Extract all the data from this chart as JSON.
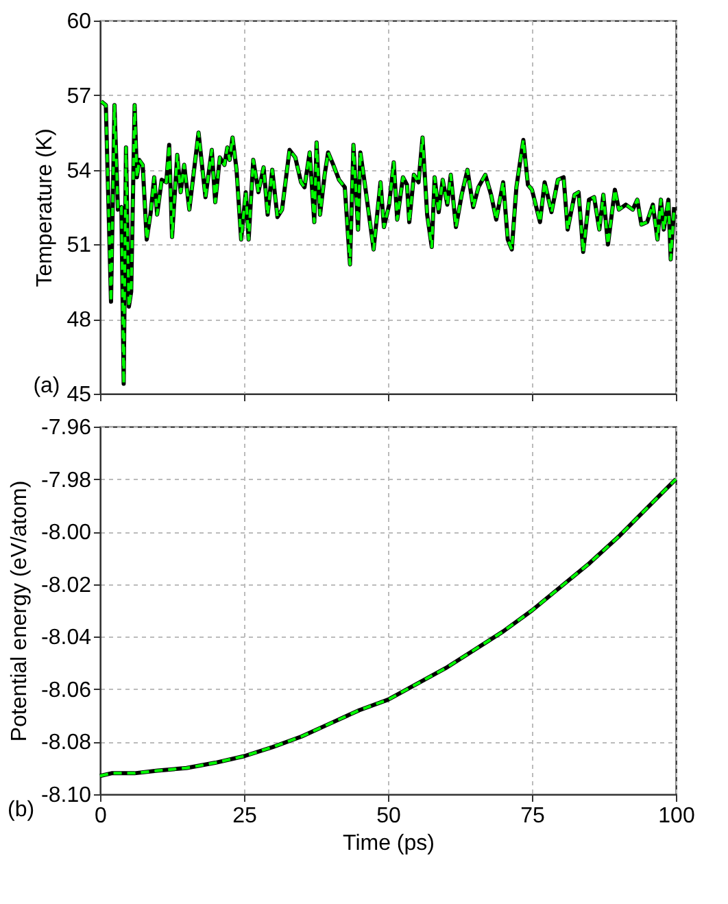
{
  "chart_data": [
    {
      "type": "line",
      "ylabel": "Temperature (K)",
      "annotations": [
        "(a)"
      ],
      "xlim": [
        0,
        100
      ],
      "xticks": [
        0,
        25,
        50,
        75,
        100
      ],
      "ylim": [
        45,
        60
      ],
      "yticks": [
        45,
        48,
        51,
        54,
        57,
        60
      ],
      "tick_labels": "y",
      "grid": true,
      "x": [
        0.2,
        1.0,
        1.9,
        2.5,
        3.1,
        3.7,
        4.1,
        4.5,
        5.0,
        5.4,
        6.0,
        6.4,
        6.8,
        7.4,
        8.1,
        8.8,
        9.4,
        9.9,
        10.7,
        11.5,
        12.0,
        12.5,
        13.4,
        14.0,
        14.6,
        15.5,
        17.1,
        18.3,
        19.4,
        20.0,
        20.8,
        21.6,
        22.1,
        22.5,
        23.0,
        23.7,
        24.5,
        25.3,
        25.8,
        26.6,
        27.5,
        28.4,
        29.1,
        29.9,
        30.8,
        31.6,
        32.9,
        33.9,
        34.9,
        35.5,
        36.4,
        37.2,
        37.6,
        38.2,
        39.0,
        39.6,
        40.5,
        41.5,
        42.5,
        43.4,
        44.0,
        44.8,
        45.2,
        46.0,
        47.5,
        48.7,
        49.3,
        50.2,
        51.0,
        51.6,
        52.6,
        53.3,
        53.7,
        54.5,
        55.3,
        56.0,
        56.8,
        57.6,
        58.1,
        58.8,
        59.5,
        60.3,
        60.9,
        61.8,
        62.8,
        63.8,
        64.8,
        65.7,
        66.9,
        67.9,
        68.8,
        70.0,
        70.8,
        71.5,
        72.3,
        73.5,
        74.3,
        75.0,
        76.4,
        77.2,
        78.4,
        79.5,
        80.5,
        81.2,
        82.4,
        83.1,
        83.9,
        84.9,
        85.8,
        86.7,
        87.4,
        88.2,
        89.4,
        90.1,
        91.3,
        92.5,
        93.3,
        94.0,
        95.0,
        96.0,
        96.8,
        97.4,
        97.9,
        98.7,
        99.1,
        99.7
      ],
      "series": [
        {
          "color": "#000000",
          "line_style": "solid",
          "values": [
            56.75,
            56.6,
            48.7,
            56.6,
            52.4,
            52.5,
            45.4,
            54.9,
            48.5,
            49.1,
            56.6,
            53.7,
            54.4,
            54.2,
            51.2,
            52.3,
            53.7,
            52.2,
            53.6,
            53.5,
            55.0,
            51.3,
            54.6,
            53.1,
            54.2,
            52.4,
            55.5,
            52.9,
            54.8,
            52.7,
            54.5,
            54.2,
            54.9,
            54.4,
            55.3,
            54.0,
            51.2,
            53.1,
            51.2,
            54.4,
            53.1,
            54.1,
            52.2,
            54.0,
            52.1,
            52.4,
            54.8,
            54.5,
            53.5,
            53.3,
            54.7,
            51.9,
            55.1,
            52.2,
            53.8,
            54.7,
            54.2,
            53.6,
            53.3,
            50.2,
            55.0,
            51.6,
            54.7,
            53.4,
            50.8,
            53.5,
            51.7,
            52.6,
            54.3,
            52.0,
            53.7,
            53.4,
            51.9,
            53.8,
            53.5,
            55.3,
            52.2,
            50.9,
            53.7,
            52.3,
            53.6,
            52.6,
            53.8,
            51.7,
            53.0,
            54.0,
            52.5,
            53.3,
            53.8,
            53.0,
            52.0,
            53.5,
            51.2,
            50.8,
            53.3,
            55.2,
            53.4,
            53.2,
            51.9,
            53.5,
            52.3,
            53.6,
            53.7,
            51.6,
            53.0,
            53.1,
            50.7,
            52.8,
            52.9,
            51.6,
            53.0,
            51.0,
            53.2,
            52.4,
            52.6,
            52.4,
            52.8,
            51.8,
            51.9,
            52.6,
            51.2,
            52.8,
            51.6,
            52.8,
            50.4,
            52.5
          ]
        },
        {
          "color": "#00ff00",
          "line_style": "dashed",
          "values": [
            56.75,
            56.6,
            48.7,
            56.6,
            52.4,
            52.5,
            45.4,
            54.9,
            48.5,
            49.1,
            56.6,
            53.7,
            54.4,
            54.2,
            51.2,
            52.3,
            53.7,
            52.2,
            53.6,
            53.5,
            55.0,
            51.3,
            54.6,
            53.1,
            54.2,
            52.4,
            55.5,
            52.9,
            54.8,
            52.7,
            54.5,
            54.2,
            54.9,
            54.4,
            55.3,
            54.0,
            51.2,
            53.1,
            51.2,
            54.4,
            53.1,
            54.1,
            52.2,
            54.0,
            52.1,
            52.4,
            54.8,
            54.5,
            53.5,
            53.3,
            54.7,
            51.9,
            55.1,
            52.2,
            53.8,
            54.7,
            54.2,
            53.6,
            53.3,
            50.2,
            55.0,
            51.6,
            54.7,
            53.4,
            50.8,
            53.5,
            51.7,
            52.6,
            54.3,
            52.0,
            53.7,
            53.4,
            51.9,
            53.8,
            53.5,
            55.3,
            52.2,
            50.9,
            53.7,
            52.3,
            53.6,
            52.6,
            53.8,
            51.7,
            53.0,
            54.0,
            52.5,
            53.3,
            53.8,
            53.0,
            52.0,
            53.5,
            51.2,
            50.8,
            53.3,
            55.2,
            53.4,
            53.2,
            51.9,
            53.5,
            52.3,
            53.6,
            53.7,
            51.6,
            53.0,
            53.1,
            50.7,
            52.8,
            52.9,
            51.6,
            53.0,
            51.0,
            53.2,
            52.4,
            52.6,
            52.4,
            52.8,
            51.8,
            51.9,
            52.6,
            51.2,
            52.8,
            51.6,
            52.8,
            50.4,
            52.5
          ]
        }
      ]
    },
    {
      "type": "line",
      "xlabel": "Time (ps)",
      "ylabel": "Potential energy (eV/atom)",
      "annotations": [
        "(b)"
      ],
      "xlim": [
        0,
        100
      ],
      "xticks": [
        0,
        25,
        50,
        75,
        100
      ],
      "ylim": [
        -8.1,
        -7.96
      ],
      "yticks": [
        {
          "value": -8.1,
          "label": "-8.10"
        },
        {
          "value": -8.08,
          "label": "-8.08"
        },
        {
          "value": -8.06,
          "label": "-8.06"
        },
        {
          "value": -8.04,
          "label": "-8.04"
        },
        {
          "value": -8.02,
          "label": "-8.02"
        },
        {
          "value": -8.0,
          "label": "-8.00"
        },
        {
          "value": -7.98,
          "label": "-7.98"
        },
        {
          "value": -7.96,
          "label": "-7.96"
        }
      ],
      "grid": true,
      "x": [
        0,
        2,
        4,
        6,
        10,
        15,
        20,
        25,
        30,
        35,
        40,
        45,
        50,
        55,
        60,
        65,
        70,
        75,
        80,
        85,
        90,
        95,
        100
      ],
      "series": [
        {
          "color": "#000000",
          "line_style": "solid",
          "values": [
            -8.093,
            -8.092,
            -8.092,
            -8.092,
            -8.091,
            -8.09,
            -8.088,
            -8.0855,
            -8.082,
            -8.078,
            -8.073,
            -8.068,
            -8.064,
            -8.058,
            -8.052,
            -8.045,
            -8.038,
            -8.03,
            -8.021,
            -8.012,
            -8.002,
            -7.991,
            -7.98
          ]
        },
        {
          "color": "#00ff00",
          "line_style": "dashed",
          "values": [
            -8.093,
            -8.092,
            -8.092,
            -8.092,
            -8.091,
            -8.09,
            -8.088,
            -8.0855,
            -8.082,
            -8.078,
            -8.073,
            -8.068,
            -8.064,
            -8.058,
            -8.052,
            -8.045,
            -8.038,
            -8.03,
            -8.021,
            -8.012,
            -8.002,
            -7.991,
            -7.98
          ]
        }
      ]
    }
  ]
}
